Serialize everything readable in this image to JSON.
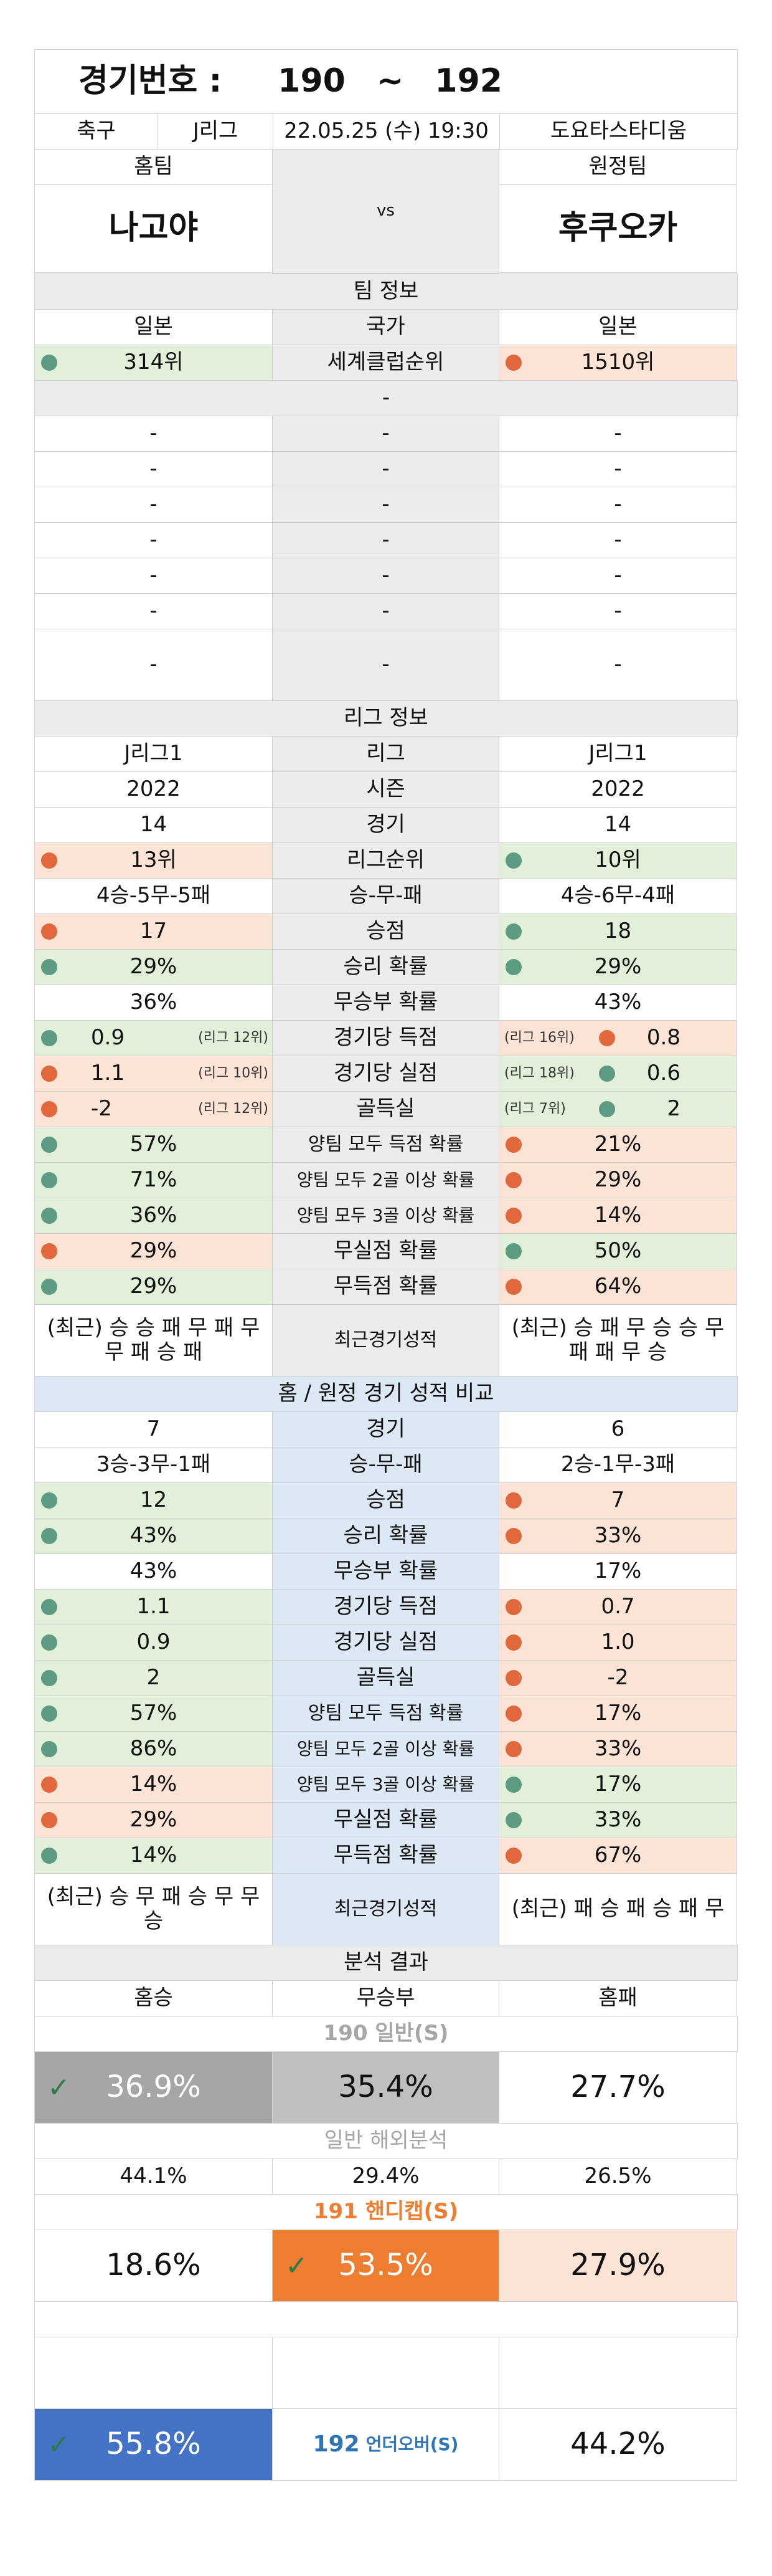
{
  "header": {
    "label": "경기번호 :",
    "num_from": "190",
    "tilde": "~",
    "num_to": "192"
  },
  "match": {
    "sport": "축구",
    "league": "J리그",
    "datetime": "22.05.25 (수) 19:30",
    "stadium": "도요타스타디움"
  },
  "teams": {
    "home_label": "홈팀",
    "away_label": "원정팀",
    "home": "나고야",
    "vs": "vs",
    "away": "후쿠오카"
  },
  "team_info": {
    "title": "팀 정보",
    "country": {
      "home": "일본",
      "label": "국가",
      "away": "일본"
    },
    "club_rank": {
      "home": "314위",
      "label": "세계클럽순위",
      "away": "1510위"
    },
    "dash": "-"
  },
  "league_info": {
    "title": "리그 정보",
    "league": {
      "home": "J리그1",
      "label": "리그",
      "away": "J리그1"
    },
    "season": {
      "home": "2022",
      "label": "시즌",
      "away": "2022"
    },
    "games": {
      "home": "14",
      "label": "경기",
      "away": "14"
    },
    "rank": {
      "home": "13위",
      "label": "리그순위",
      "away": "10위"
    },
    "wdl": {
      "home": "4승-5무-5패",
      "label": "승-무-패",
      "away": "4승-6무-4패"
    },
    "points": {
      "home": "17",
      "label": "승점",
      "away": "18"
    },
    "win_prob": {
      "home": "29%",
      "label": "승리 확률",
      "away": "29%"
    },
    "draw_prob": {
      "home": "36%",
      "label": "무승부 확률",
      "away": "43%"
    },
    "goals_for": {
      "home": "0.9",
      "home_rank": "(리그 12위)",
      "label": "경기당 득점",
      "away_rank": "(리그 16위)",
      "away": "0.8"
    },
    "goals_against": {
      "home": "1.1",
      "home_rank": "(리그 10위)",
      "label": "경기당 실점",
      "away_rank": "(리그 18위)",
      "away": "0.6"
    },
    "goal_diff": {
      "home": "-2",
      "home_rank": "(리그 12위)",
      "label": "골득실",
      "away_rank": "(리그 7위)",
      "away": "2"
    },
    "btts": {
      "home": "57%",
      "label": "양팀 모두 득점 확률",
      "away": "21%"
    },
    "btts2": {
      "home": "71%",
      "label": "양팀 모두 2골 이상 확률",
      "away": "29%"
    },
    "btts3": {
      "home": "36%",
      "label": "양팀 모두 3골 이상 확률",
      "away": "14%"
    },
    "clean_sheet": {
      "home": "29%",
      "label": "무실점 확률",
      "away": "50%"
    },
    "no_score": {
      "home": "29%",
      "label": "무득점 확률",
      "away": "64%"
    },
    "recent": {
      "home": "(최근) 승 승 패 무 패 무 무 패 승 패",
      "label": "최근경기성적",
      "away": "(최근) 승 패 무 승 승 무 패 패 무 승"
    }
  },
  "home_away": {
    "title": "홈 / 원정 경기 성적 비교",
    "games": {
      "home": "7",
      "label": "경기",
      "away": "6"
    },
    "wdl": {
      "home": "3승-3무-1패",
      "label": "승-무-패",
      "away": "2승-1무-3패"
    },
    "points": {
      "home": "12",
      "label": "승점",
      "away": "7"
    },
    "win_prob": {
      "home": "43%",
      "label": "승리 확률",
      "away": "33%"
    },
    "draw_prob": {
      "home": "43%",
      "label": "무승부 확률",
      "away": "17%"
    },
    "goals_for": {
      "home": "1.1",
      "label": "경기당 득점",
      "away": "0.7"
    },
    "goals_against": {
      "home": "0.9",
      "label": "경기당 실점",
      "away": "1.0"
    },
    "goal_diff": {
      "home": "2",
      "label": "골득실",
      "away": "-2"
    },
    "btts": {
      "home": "57%",
      "label": "양팀 모두 득점 확률",
      "away": "17%"
    },
    "btts2": {
      "home": "86%",
      "label": "양팀 모두 2골 이상 확률",
      "away": "33%"
    },
    "btts3": {
      "home": "14%",
      "label": "양팀 모두 3골 이상 확률",
      "away": "17%"
    },
    "clean_sheet": {
      "home": "29%",
      "label": "무실점 확률",
      "away": "33%"
    },
    "no_score": {
      "home": "14%",
      "label": "무득점 확률",
      "away": "67%"
    },
    "recent": {
      "home": "(최근) 승 무 패 승 무 무 승",
      "label": "최근경기성적",
      "away": "(최근) 패 승 패 승 패 무"
    }
  },
  "analysis": {
    "title": "분석 결과",
    "cols": {
      "home": "홈승",
      "draw": "무승부",
      "away": "홈패"
    },
    "general": {
      "title": "190 일반(S)",
      "home": "36.9%",
      "draw": "35.4%",
      "away": "27.7%"
    },
    "overseas": {
      "title": "일반 해외분석",
      "home": "44.1%",
      "draw": "29.4%",
      "away": "26.5%"
    },
    "handicap": {
      "title": "191 핸디캡(S)",
      "home": "18.6%",
      "draw": "53.5%",
      "away": "27.9%"
    },
    "underover": {
      "under": "55.8%",
      "label_num": "192",
      "label_text": "언더오버(S)",
      "over": "44.2%"
    }
  },
  "colors": {
    "green": "#e2efd9",
    "orange_light": "#fbe3d5",
    "orange": "#ed7d31",
    "blue": "#4472c4",
    "grey_dark": "#a6a6a6",
    "grey_mid": "#bfbfbf",
    "section_grey": "#ececec",
    "section_blue": "#dce9f5"
  }
}
